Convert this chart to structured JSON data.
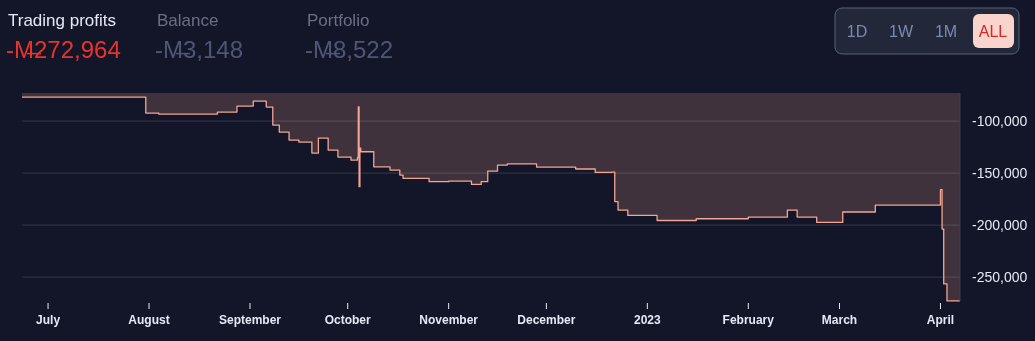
{
  "chart_data": {
    "type": "area",
    "title": "Trading profits",
    "subtitle": "-M̶272,964",
    "annotations": [
      "Balance",
      "-M̶3,148",
      "Portfolio",
      "-M̶8,522",
      "1D",
      "1W",
      "1M",
      "ALL"
    ],
    "x": [
      "2022-06-23",
      "2022-07-30",
      "2022-07-31",
      "2022-08-04",
      "2022-08-22",
      "2022-08-28",
      "2022-09-02",
      "2022-09-04",
      "2022-09-06",
      "2022-09-08",
      "2022-09-10",
      "2022-09-13",
      "2022-09-16",
      "2022-09-20",
      "2022-09-22",
      "2022-09-25",
      "2022-09-28",
      "2022-10-02",
      "2022-10-04",
      "2022-10-04T06:00",
      "2022-10-04T12:00",
      "2022-10-04T18:00",
      "2022-10-05",
      "2022-10-09",
      "2022-10-14",
      "2022-10-17",
      "2022-10-18",
      "2022-10-26",
      "2022-11-01",
      "2022-11-08",
      "2022-11-11",
      "2022-11-13",
      "2022-11-16",
      "2022-11-19",
      "2022-11-28",
      "2022-12-10",
      "2022-12-16",
      "2022-12-21",
      "2022-12-22",
      "2022-12-23",
      "2022-12-26",
      "2023-01-04",
      "2023-01-16",
      "2023-02-01",
      "2023-02-13",
      "2023-02-16",
      "2023-02-22",
      "2023-03-02",
      "2023-03-12",
      "2023-03-31",
      "2023-04-01",
      "2023-04-01T12:00",
      "2023-04-02",
      "2023-04-03",
      "2023-04-07"
    ],
    "series": [
      {
        "color": "#f4a593",
        "values": [
          -76900,
          -76900,
          -92300,
          -93300,
          -91300,
          -85600,
          -80800,
          -80800,
          -86500,
          -103800,
          -110600,
          -118300,
          -120200,
          -130800,
          -116300,
          -127900,
          -134600,
          -137500,
          -135000,
          -86300,
          -163100,
          -126000,
          -129500,
          -144000,
          -147100,
          -151900,
          -155100,
          -158300,
          -157700,
          -160900,
          -158300,
          -148100,
          -142300,
          -141200,
          -144200,
          -146100,
          -149400,
          -149000,
          -177500,
          -185600,
          -190700,
          -195600,
          -193900,
          -192300,
          -185700,
          -192300,
          -197400,
          -187400,
          -180800,
          -180800,
          -166000,
          -203800,
          -256600,
          -272964,
          -272964
        ]
      }
    ],
    "xlim": [
      "2022-06-23",
      "2023-04-07"
    ],
    "xticks": [
      {
        "value": "2022-07-01",
        "label": "July"
      },
      {
        "value": "2022-08-01",
        "label": "August"
      },
      {
        "value": "2022-09-01",
        "label": "September"
      },
      {
        "value": "2022-10-01",
        "label": "October"
      },
      {
        "value": "2022-11-01",
        "label": "November"
      },
      {
        "value": "2022-12-01",
        "label": "December"
      },
      {
        "value": "2023-01-01",
        "label": "2023"
      },
      {
        "value": "2023-02-01",
        "label": "February"
      },
      {
        "value": "2023-03-01",
        "label": "March"
      },
      {
        "value": "2023-04-01",
        "label": "April"
      }
    ],
    "ylim": [
      -273000,
      -73000
    ],
    "yticks": [
      {
        "value": -100000,
        "label": "-100,000"
      },
      {
        "value": -150000,
        "label": "-150,000"
      },
      {
        "value": -200000,
        "label": "-200,000"
      },
      {
        "value": -250000,
        "label": "-250,000"
      }
    ],
    "grid": "y"
  }
}
